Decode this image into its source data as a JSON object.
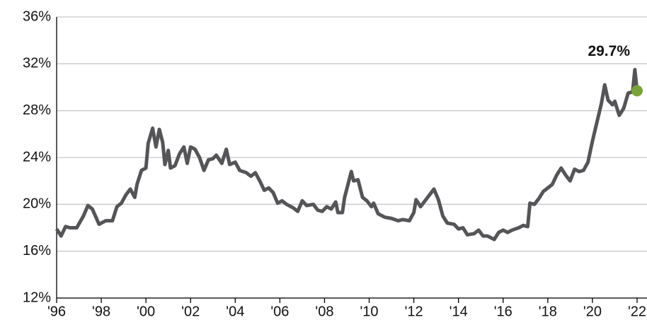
{
  "chart_data": {
    "type": "line",
    "x": [
      1996.0,
      1996.2,
      1996.4,
      1996.6,
      1996.9,
      1997.2,
      1997.4,
      1997.6,
      1997.9,
      1998.2,
      1998.5,
      1998.7,
      1998.9,
      1999.1,
      1999.3,
      1999.5,
      1999.6,
      1999.8,
      2000.0,
      2000.1,
      2000.3,
      2000.45,
      2000.6,
      2000.75,
      2000.85,
      2001.0,
      2001.1,
      2001.3,
      2001.5,
      2001.7,
      2001.85,
      2002.0,
      2002.2,
      2002.4,
      2002.6,
      2002.8,
      2003.0,
      2003.15,
      2003.4,
      2003.6,
      2003.75,
      2004.0,
      2004.2,
      2004.5,
      2004.7,
      2004.9,
      2005.1,
      2005.3,
      2005.5,
      2005.7,
      2005.9,
      2006.1,
      2006.3,
      2006.6,
      2006.8,
      2007.0,
      2007.2,
      2007.5,
      2007.7,
      2007.9,
      2008.1,
      2008.3,
      2008.5,
      2008.6,
      2008.8,
      2008.9,
      2009.2,
      2009.3,
      2009.5,
      2009.7,
      2009.9,
      2010.1,
      2010.2,
      2010.4,
      2010.7,
      2011.0,
      2011.3,
      2011.5,
      2011.8,
      2012.0,
      2012.1,
      2012.3,
      2012.5,
      2012.7,
      2012.9,
      2013.1,
      2013.3,
      2013.5,
      2013.8,
      2014.0,
      2014.2,
      2014.4,
      2014.7,
      2014.9,
      2015.1,
      2015.3,
      2015.6,
      2015.8,
      2016.0,
      2016.2,
      2016.4,
      2016.7,
      2016.9,
      2017.1,
      2017.2,
      2017.4,
      2017.6,
      2017.8,
      2018.0,
      2018.2,
      2018.4,
      2018.6,
      2018.8,
      2019.0,
      2019.2,
      2019.4,
      2019.6,
      2019.8,
      2020.0,
      2020.2,
      2020.4,
      2020.55,
      2020.7,
      2020.9,
      2021.0,
      2021.2,
      2021.4,
      2021.6,
      2021.8,
      2021.9,
      2022.0
    ],
    "series": [
      {
        "color": "#555558",
        "values": [
          17.9,
          17.3,
          18.1,
          18.0,
          18.0,
          19.0,
          19.9,
          19.6,
          18.3,
          18.6,
          18.6,
          19.8,
          20.1,
          20.8,
          21.3,
          20.6,
          21.7,
          22.9,
          23.1,
          25.2,
          26.5,
          24.9,
          26.4,
          25.3,
          23.4,
          24.6,
          23.1,
          23.3,
          24.3,
          24.9,
          23.5,
          24.9,
          24.7,
          24.0,
          22.9,
          23.8,
          23.9,
          24.2,
          23.5,
          24.7,
          23.4,
          23.6,
          22.9,
          22.7,
          22.4,
          22.7,
          22.0,
          21.2,
          21.4,
          21.0,
          20.1,
          20.3,
          20.0,
          19.7,
          19.4,
          20.3,
          19.9,
          20.0,
          19.5,
          19.4,
          19.8,
          19.6,
          20.2,
          19.3,
          19.3,
          20.6,
          22.8,
          22.0,
          22.1,
          20.6,
          20.3,
          19.8,
          20.1,
          19.2,
          18.9,
          18.8,
          18.6,
          18.7,
          18.6,
          19.3,
          20.4,
          19.8,
          20.3,
          20.8,
          21.3,
          20.4,
          19.0,
          18.4,
          18.3,
          17.9,
          18.0,
          17.4,
          17.5,
          17.8,
          17.3,
          17.3,
          17.0,
          17.6,
          17.8,
          17.6,
          17.8,
          18.0,
          18.2,
          18.1,
          20.1,
          20.0,
          20.5,
          21.1,
          21.4,
          21.7,
          22.5,
          23.1,
          22.5,
          22.0,
          23.0,
          22.8,
          22.9,
          23.6,
          25.4,
          27.0,
          28.6,
          30.2,
          28.9,
          28.5,
          28.8,
          27.6,
          28.2,
          29.5,
          29.6,
          31.5,
          29.7
        ]
      }
    ],
    "highlight": {
      "x": 2022,
      "value": 29.7,
      "label": "29.7%",
      "color": "#7aa23a"
    },
    "xlim": [
      1996,
      2022
    ],
    "xticks": [
      {
        "value": 1996,
        "label": "'96"
      },
      {
        "value": 1998,
        "label": "'98"
      },
      {
        "value": 2000,
        "label": "'00"
      },
      {
        "value": 2002,
        "label": "'02"
      },
      {
        "value": 2004,
        "label": "'04"
      },
      {
        "value": 2006,
        "label": "'06"
      },
      {
        "value": 2008,
        "label": "'08"
      },
      {
        "value": 2010,
        "label": "'10"
      },
      {
        "value": 2012,
        "label": "'12"
      },
      {
        "value": 2014,
        "label": "'14"
      },
      {
        "value": 2016,
        "label": "'16"
      },
      {
        "value": 2018,
        "label": "'18"
      },
      {
        "value": 2020,
        "label": "'20"
      },
      {
        "value": 2022,
        "label": "'22"
      }
    ],
    "ylim": [
      12,
      36
    ],
    "yticks": [
      {
        "value": 12,
        "label": "12%"
      },
      {
        "value": 16,
        "label": "16%"
      },
      {
        "value": 20,
        "label": "20%"
      },
      {
        "value": 24,
        "label": "24%"
      },
      {
        "value": 28,
        "label": "28%"
      },
      {
        "value": 32,
        "label": "32%"
      },
      {
        "value": 36,
        "label": "36%"
      }
    ],
    "grid": true
  }
}
